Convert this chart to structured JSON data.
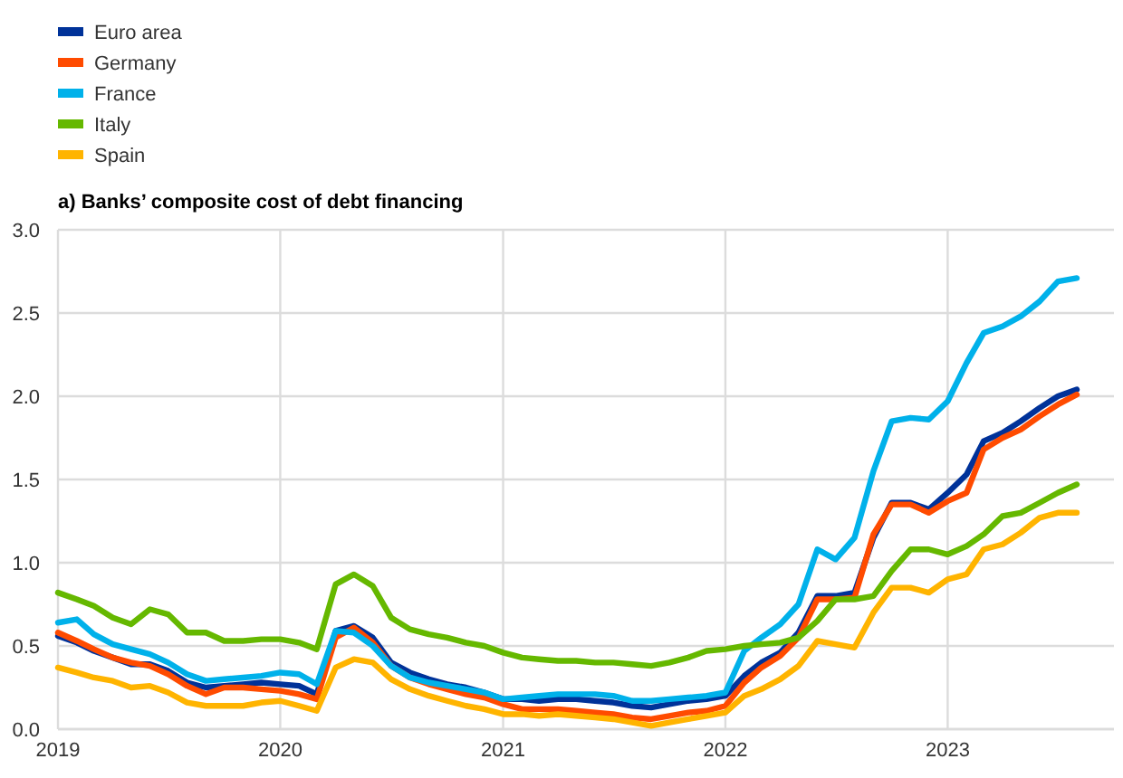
{
  "chart_data": {
    "type": "line",
    "title": "a) Banks’ composite cost of debt financing",
    "x": [
      "2019-01",
      "2019-02",
      "2019-03",
      "2019-04",
      "2019-05",
      "2019-06",
      "2019-07",
      "2019-08",
      "2019-09",
      "2019-10",
      "2019-11",
      "2019-12",
      "2020-01",
      "2020-02",
      "2020-03",
      "2020-04",
      "2020-05",
      "2020-06",
      "2020-07",
      "2020-08",
      "2020-09",
      "2020-10",
      "2020-11",
      "2020-12",
      "2021-01",
      "2021-02",
      "2021-03",
      "2021-04",
      "2021-05",
      "2021-06",
      "2021-07",
      "2021-08",
      "2021-09",
      "2021-10",
      "2021-11",
      "2021-12",
      "2022-01",
      "2022-02",
      "2022-03",
      "2022-04",
      "2022-05",
      "2022-06",
      "2022-07",
      "2022-08",
      "2022-09",
      "2022-10",
      "2022-11",
      "2022-12",
      "2023-01",
      "2023-02",
      "2023-03",
      "2023-04",
      "2023-05",
      "2023-06",
      "2023-07",
      "2023-08"
    ],
    "series": [
      {
        "name": "Euro area",
        "color": "#003299",
        "values": [
          0.56,
          0.52,
          0.47,
          0.43,
          0.39,
          0.39,
          0.35,
          0.28,
          0.25,
          0.26,
          0.27,
          0.28,
          0.27,
          0.26,
          0.21,
          0.59,
          0.62,
          0.55,
          0.4,
          0.34,
          0.3,
          0.27,
          0.25,
          0.22,
          0.18,
          0.18,
          0.17,
          0.18,
          0.18,
          0.17,
          0.16,
          0.14,
          0.13,
          0.15,
          0.17,
          0.18,
          0.2,
          0.32,
          0.4,
          0.46,
          0.58,
          0.8,
          0.8,
          0.82,
          1.15,
          1.36,
          1.36,
          1.32,
          1.42,
          1.53,
          1.73,
          1.78,
          1.85,
          1.93,
          2.0,
          2.04
        ]
      },
      {
        "name": "Germany",
        "color": "#ff4b00",
        "values": [
          0.58,
          0.53,
          0.48,
          0.43,
          0.4,
          0.38,
          0.33,
          0.26,
          0.21,
          0.25,
          0.25,
          0.24,
          0.23,
          0.21,
          0.18,
          0.55,
          0.61,
          0.52,
          0.38,
          0.31,
          0.27,
          0.24,
          0.21,
          0.19,
          0.15,
          0.12,
          0.12,
          0.12,
          0.11,
          0.1,
          0.09,
          0.07,
          0.06,
          0.08,
          0.1,
          0.11,
          0.14,
          0.28,
          0.37,
          0.44,
          0.55,
          0.78,
          0.78,
          0.79,
          1.17,
          1.35,
          1.35,
          1.3,
          1.37,
          1.42,
          1.68,
          1.75,
          1.8,
          1.88,
          1.95,
          2.01
        ]
      },
      {
        "name": "France",
        "color": "#00b1ea",
        "values": [
          0.64,
          0.66,
          0.57,
          0.51,
          0.48,
          0.45,
          0.4,
          0.33,
          0.29,
          0.3,
          0.31,
          0.32,
          0.34,
          0.33,
          0.27,
          0.59,
          0.58,
          0.5,
          0.38,
          0.31,
          0.28,
          0.26,
          0.24,
          0.22,
          0.18,
          0.19,
          0.2,
          0.21,
          0.21,
          0.21,
          0.2,
          0.17,
          0.17,
          0.18,
          0.19,
          0.2,
          0.22,
          0.47,
          0.55,
          0.63,
          0.75,
          1.08,
          1.02,
          1.15,
          1.55,
          1.85,
          1.87,
          1.86,
          1.97,
          2.2,
          2.38,
          2.42,
          2.48,
          2.57,
          2.69,
          2.71
        ]
      },
      {
        "name": "Italy",
        "color": "#65b800",
        "values": [
          0.82,
          0.78,
          0.74,
          0.67,
          0.63,
          0.72,
          0.69,
          0.58,
          0.58,
          0.53,
          0.53,
          0.54,
          0.54,
          0.52,
          0.48,
          0.87,
          0.93,
          0.86,
          0.67,
          0.6,
          0.57,
          0.55,
          0.52,
          0.5,
          0.46,
          0.43,
          0.42,
          0.41,
          0.41,
          0.4,
          0.4,
          0.39,
          0.38,
          0.4,
          0.43,
          0.47,
          0.48,
          0.5,
          0.51,
          0.52,
          0.55,
          0.65,
          0.78,
          0.78,
          0.8,
          0.95,
          1.08,
          1.08,
          1.05,
          1.1,
          1.17,
          1.28,
          1.3,
          1.36,
          1.42,
          1.47
        ]
      },
      {
        "name": "Spain",
        "color": "#ffb400",
        "values": [
          0.37,
          0.34,
          0.31,
          0.29,
          0.25,
          0.26,
          0.22,
          0.16,
          0.14,
          0.14,
          0.14,
          0.16,
          0.17,
          0.14,
          0.11,
          0.37,
          0.42,
          0.4,
          0.3,
          0.24,
          0.2,
          0.17,
          0.14,
          0.12,
          0.09,
          0.09,
          0.08,
          0.09,
          0.08,
          0.07,
          0.06,
          0.04,
          0.02,
          0.04,
          0.06,
          0.08,
          0.1,
          0.2,
          0.24,
          0.3,
          0.38,
          0.53,
          0.51,
          0.49,
          0.7,
          0.85,
          0.85,
          0.82,
          0.9,
          0.93,
          1.08,
          1.11,
          1.18,
          1.27,
          1.3,
          1.3
        ]
      }
    ],
    "xlim": [
      "2019-01",
      "2023-10"
    ],
    "xticks": [
      "2019",
      "2020",
      "2021",
      "2022",
      "2023"
    ],
    "ylim": [
      0,
      3
    ],
    "yticks": [
      {
        "value": 0,
        "label": "0.0"
      },
      {
        "value": 0.5,
        "label": "0.5"
      },
      {
        "value": 1,
        "label": "1.0"
      },
      {
        "value": 1.5,
        "label": "1.5"
      },
      {
        "value": 2,
        "label": "2.0"
      },
      {
        "value": 2.5,
        "label": "2.5"
      },
      {
        "value": 3,
        "label": "3.0"
      }
    ],
    "grid": true,
    "legend": "top left",
    "marker": "none",
    "line_style": "solid"
  }
}
